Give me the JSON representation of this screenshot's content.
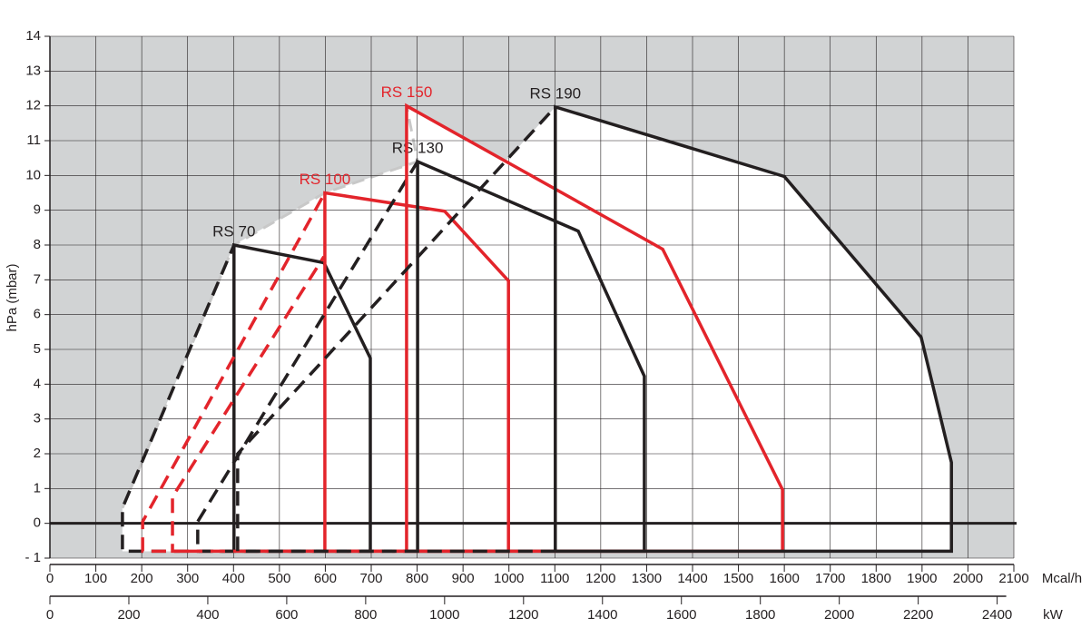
{
  "chart_data": {
    "type": "working-field",
    "x_label": "Mcal/h",
    "x2_label": "kW",
    "y_label": "hPa (mbar)",
    "xlim": [
      0,
      2100
    ],
    "xticks": [
      0,
      100,
      200,
      300,
      400,
      500,
      600,
      700,
      800,
      900,
      1000,
      1100,
      1200,
      1300,
      1400,
      1500,
      1600,
      1700,
      1800,
      1900,
      2000,
      2100
    ],
    "x2lim": [
      0,
      2442.3
    ],
    "x2ticks": [
      0,
      200,
      400,
      600,
      800,
      1000,
      1200,
      1400,
      1600,
      1800,
      2000,
      2200,
      2400
    ],
    "ylim": [
      -1,
      14
    ],
    "yticks": [
      {
        "value": -1,
        "label": "- 1"
      },
      0,
      1,
      2,
      3,
      4,
      5,
      6,
      7,
      8,
      9,
      10,
      11,
      12,
      13,
      14
    ],
    "grid": true,
    "series": [
      {
        "name": "RS 70",
        "color": "#231f20",
        "dashed": {
          "x": [
            401,
            158,
            158,
            401
          ],
          "y": [
            -0.8,
            -0.8,
            0.44,
            8.0
          ]
        },
        "solid": {
          "x": [
            401,
            401,
            597,
            698,
            698,
            401
          ],
          "y": [
            -0.8,
            8.0,
            7.49,
            4.75,
            -0.8,
            -0.8
          ]
        }
      },
      {
        "name": "RS 100",
        "color": "#e3242b",
        "dashed": {
          "x": [
            599,
            202,
            202,
            599
          ],
          "y": [
            -0.8,
            -0.8,
            0.05,
            9.5
          ]
        },
        "solid": {
          "x": [
            599,
            599,
            860,
            999,
            999,
            599
          ],
          "y": [
            -0.8,
            9.5,
            8.97,
            6.97,
            -0.8,
            -0.8
          ]
        }
      },
      {
        "name": "RS 130",
        "color": "#231f20",
        "dashed": {
          "x": [
            801,
            322,
            322,
            801
          ],
          "y": [
            -0.8,
            -0.8,
            0.05,
            10.4
          ]
        },
        "solid": {
          "x": [
            801,
            801,
            1151,
            1295,
            1295,
            801
          ],
          "y": [
            -0.8,
            10.4,
            8.4,
            4.23,
            -0.8,
            -0.8
          ]
        }
      },
      {
        "name": "RS 150",
        "color": "#e3242b",
        "dashed": {
          "x": [
            777,
            267,
            267,
            597
          ],
          "y": [
            -0.8,
            -0.8,
            0.76,
            7.67
          ]
        },
        "solid": {
          "x": [
            777,
            777,
            1335,
            1596,
            1596,
            777
          ],
          "y": [
            -0.8,
            12.0,
            7.88,
            0.97,
            -0.8,
            -0.8
          ]
        }
      },
      {
        "name": "RS 190",
        "color": "#231f20",
        "dashed": {
          "x": [
            1101,
            409,
            409,
            1101
          ],
          "y": [
            -0.8,
            -0.8,
            2.0,
            11.97
          ]
        },
        "solid": {
          "x": [
            1101,
            1101,
            1600,
            1898,
            1964,
            1964,
            1101
          ],
          "y": [
            -0.8,
            11.97,
            9.97,
            5.35,
            1.75,
            -0.8,
            -0.8
          ]
        }
      }
    ]
  }
}
